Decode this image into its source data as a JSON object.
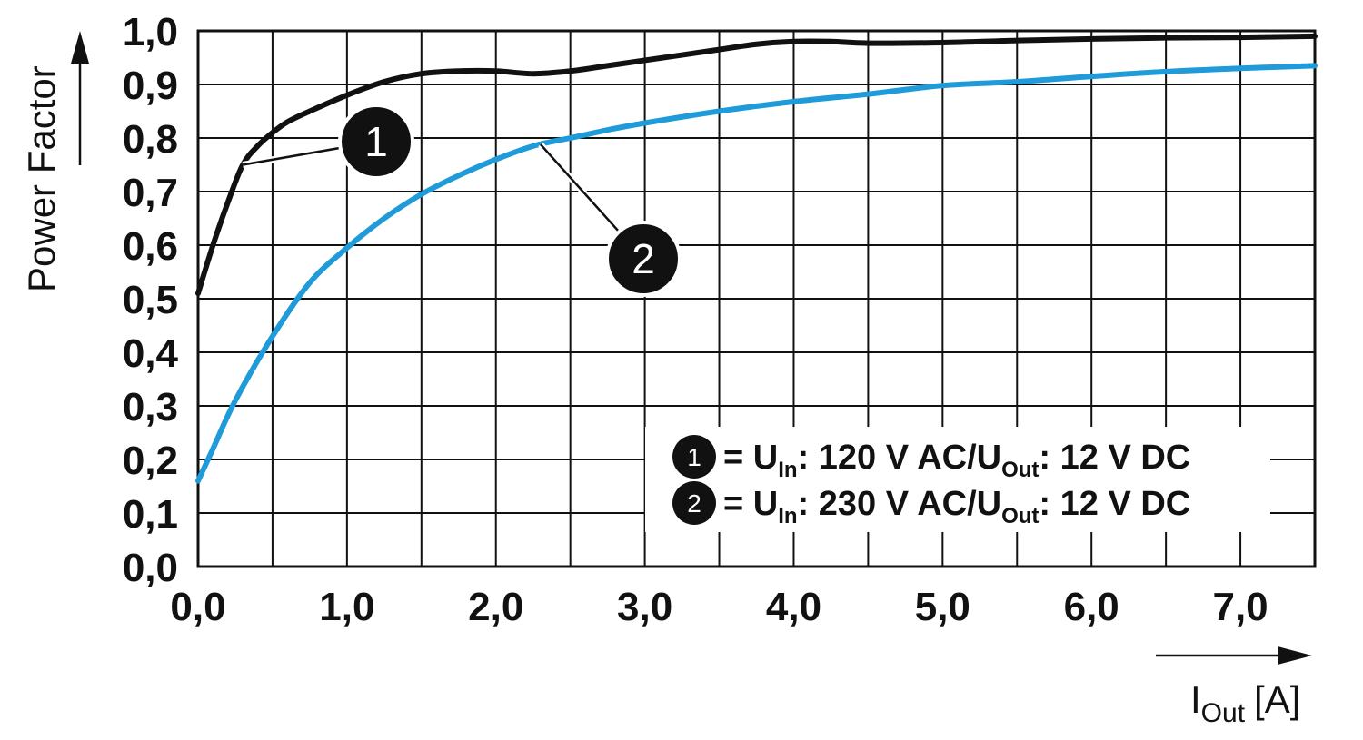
{
  "chart_data": {
    "type": "line",
    "xlabel": {
      "main": "I",
      "sub": "Out",
      "unit": "[A]"
    },
    "ylabel": "Power Factor",
    "xlim": [
      0,
      7.5
    ],
    "ylim": [
      0,
      1.0
    ],
    "x_ticks": [
      "0,0",
      "1,0",
      "2,0",
      "3,0",
      "4,0",
      "5,0",
      "6,0",
      "7,0"
    ],
    "y_ticks": [
      "0,0",
      "0,1",
      "0,2",
      "0,3",
      "0,4",
      "0,5",
      "0,6",
      "0,7",
      "0,8",
      "0,9",
      "1,0"
    ],
    "grid": true,
    "series": [
      {
        "name": "1",
        "color": "#111111",
        "legend": {
          "marker": "1",
          "eq": "= U",
          "sub1": "In",
          "mid": ": 120 V AC/U",
          "sub2": "Out",
          "tail": ": 12 V DC"
        },
        "points": [
          [
            0.0,
            0.51
          ],
          [
            0.1,
            0.6
          ],
          [
            0.2,
            0.68
          ],
          [
            0.3,
            0.75
          ],
          [
            0.4,
            0.785
          ],
          [
            0.5,
            0.81
          ],
          [
            0.6,
            0.83
          ],
          [
            0.75,
            0.85
          ],
          [
            1.0,
            0.88
          ],
          [
            1.25,
            0.905
          ],
          [
            1.5,
            0.92
          ],
          [
            1.75,
            0.925
          ],
          [
            2.0,
            0.925
          ],
          [
            2.25,
            0.92
          ],
          [
            2.5,
            0.925
          ],
          [
            2.75,
            0.935
          ],
          [
            3.0,
            0.945
          ],
          [
            3.5,
            0.965
          ],
          [
            3.75,
            0.975
          ],
          [
            4.0,
            0.98
          ],
          [
            4.25,
            0.98
          ],
          [
            4.5,
            0.977
          ],
          [
            5.0,
            0.978
          ],
          [
            5.5,
            0.982
          ],
          [
            6.0,
            0.985
          ],
          [
            6.5,
            0.987
          ],
          [
            7.0,
            0.988
          ],
          [
            7.5,
            0.99
          ]
        ]
      },
      {
        "name": "2",
        "color": "#1f9bd9",
        "legend": {
          "marker": "2",
          "eq": "= U",
          "sub1": "In",
          "mid": ": 230 V AC/U",
          "sub2": "Out",
          "tail": ": 12 V DC"
        },
        "points": [
          [
            0.0,
            0.16
          ],
          [
            0.1,
            0.22
          ],
          [
            0.25,
            0.31
          ],
          [
            0.5,
            0.43
          ],
          [
            0.75,
            0.53
          ],
          [
            1.0,
            0.595
          ],
          [
            1.25,
            0.65
          ],
          [
            1.5,
            0.695
          ],
          [
            1.75,
            0.73
          ],
          [
            2.0,
            0.76
          ],
          [
            2.25,
            0.785
          ],
          [
            2.5,
            0.8
          ],
          [
            2.75,
            0.815
          ],
          [
            3.0,
            0.828
          ],
          [
            3.5,
            0.85
          ],
          [
            4.0,
            0.868
          ],
          [
            4.5,
            0.882
          ],
          [
            5.0,
            0.898
          ],
          [
            5.5,
            0.905
          ],
          [
            6.0,
            0.915
          ],
          [
            6.5,
            0.924
          ],
          [
            7.0,
            0.93
          ],
          [
            7.5,
            0.935
          ]
        ]
      }
    ],
    "annotations": [
      {
        "label": "1",
        "series": 0,
        "at_x": 0.3
      },
      {
        "label": "2",
        "series": 1,
        "at_x": 2.3
      }
    ],
    "legend_position": "bottom-right"
  }
}
